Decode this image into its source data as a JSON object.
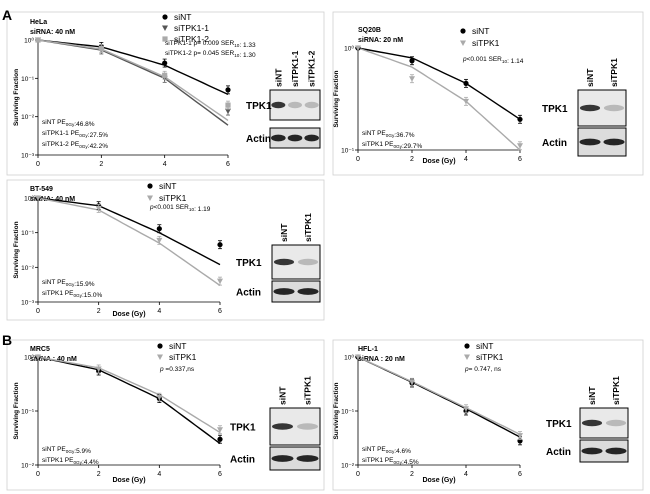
{
  "figure": {
    "panel_labels": [
      "A",
      "B"
    ],
    "blot_band_labels": [
      "TPK1",
      "Actin"
    ]
  },
  "chart_data": [
    {
      "type": "line",
      "panel": "A",
      "cell_line": "HeLa",
      "sirna_label": "siRNA: 40 nM",
      "xlabel": "",
      "ylabel": "Surviving Fraction",
      "x_ticks": [
        "0",
        "2",
        "4",
        "6"
      ],
      "y_ticks": [
        "10⁰",
        "10⁻¹",
        "10⁻²",
        "10⁻³"
      ],
      "xlim": [
        0,
        6
      ],
      "ylim_log10": [
        -3,
        0
      ],
      "x": [
        0,
        2,
        4,
        6
      ],
      "series": [
        {
          "name": "siNT",
          "marker": "circle",
          "color": "#000000",
          "values": [
            1.0,
            0.68,
            0.25,
            0.05
          ],
          "fit": [
            1.0,
            0.66,
            0.22,
            0.038
          ]
        },
        {
          "name": "siTPK1-1",
          "marker": "triangle",
          "color": "#555555",
          "values": [
            1.0,
            0.55,
            0.1,
            0.014
          ],
          "fit": [
            1.0,
            0.55,
            0.1,
            0.006
          ]
        },
        {
          "name": "siTPK1-2",
          "marker": "square",
          "color": "#aaaaaa",
          "values": [
            1.0,
            0.6,
            0.12,
            0.02
          ],
          "fit": [
            1.0,
            0.58,
            0.11,
            0.008
          ]
        }
      ],
      "stats": [
        "siTPK1-1 p= 0.009 SER10: 1.33",
        "siTPK1-2 p= 0.045 SER10: 1.30"
      ],
      "pe_notes": [
        "siNT PE0Gy:46.8%",
        "siTPK1-1 PE0Gy:27.5%",
        "siTPK1-2 PE0Gy:42.2%"
      ],
      "blot_lanes": [
        "siNT",
        "siTPK1-1",
        "siTPK1-2"
      ]
    },
    {
      "type": "line",
      "panel": "A",
      "cell_line": "SQ20B",
      "sirna_label": "siRNA: 20 nM",
      "xlabel": "Dose (Gy)",
      "ylabel": "Surviving Fraction",
      "x_ticks": [
        "0",
        "2",
        "4",
        "6"
      ],
      "y_ticks": [
        "10⁰",
        "10⁻¹"
      ],
      "xlim": [
        0,
        6
      ],
      "ylim_log10": [
        -1,
        0
      ],
      "x": [
        0,
        2,
        4,
        6
      ],
      "series": [
        {
          "name": "siNT",
          "marker": "circle",
          "color": "#000000",
          "values": [
            1.0,
            0.75,
            0.45,
            0.2
          ],
          "fit": [
            1.0,
            0.8,
            0.45,
            0.2
          ]
        },
        {
          "name": "siTPK1",
          "marker": "triangle",
          "color": "#aaaaaa",
          "values": [
            1.0,
            0.5,
            0.3,
            0.11
          ],
          "fit": [
            1.0,
            0.65,
            0.3,
            0.1
          ]
        }
      ],
      "stats": [
        "p<0.001 SER10: 1.14"
      ],
      "pe_notes": [
        "siNT PE0Gy:36.7%",
        "siTPK1 PE0Gy:29.7%"
      ],
      "blot_lanes": [
        "siNT",
        "siTPK1"
      ]
    },
    {
      "type": "line",
      "panel": "A",
      "cell_line": "BT-549",
      "sirna_label": "siRNA: 40 nM",
      "xlabel": "Dose (Gy)",
      "ylabel": "Surviving Fraction",
      "x_ticks": [
        "0",
        "2",
        "4",
        "6"
      ],
      "y_ticks": [
        "10⁰",
        "10⁻¹",
        "10⁻²",
        "10⁻³"
      ],
      "xlim": [
        0,
        6
      ],
      "ylim_log10": [
        -3,
        0
      ],
      "x": [
        0,
        2,
        4,
        6
      ],
      "series": [
        {
          "name": "siNT",
          "marker": "circle",
          "color": "#000000",
          "values": [
            1.0,
            0.6,
            0.13,
            0.045
          ],
          "fit": [
            1.0,
            0.6,
            0.1,
            0.012
          ]
        },
        {
          "name": "siTPK1",
          "marker": "triangle",
          "color": "#aaaaaa",
          "values": [
            1.0,
            0.5,
            0.06,
            0.004
          ],
          "fit": [
            1.0,
            0.45,
            0.05,
            0.003
          ]
        }
      ],
      "stats": [
        "p<0.001 SER10: 1.19"
      ],
      "pe_notes": [
        "siNT PE0Gy:15.9%",
        "siTPK1 PE0Gy:15.0%"
      ],
      "blot_lanes": [
        "siNT",
        "siTPK1"
      ]
    },
    {
      "type": "line",
      "panel": "B",
      "cell_line": "MRC5",
      "sirna_label": "siRNA : 40 nM",
      "xlabel": "Dose (Gy)",
      "ylabel": "Surviving Fraction",
      "x_ticks": [
        "0",
        "2",
        "4",
        "6"
      ],
      "y_ticks": [
        "10⁰",
        "10⁻¹",
        "10⁻²"
      ],
      "xlim": [
        0,
        6
      ],
      "ylim_log10": [
        -2,
        0
      ],
      "x": [
        0,
        2,
        4,
        6
      ],
      "series": [
        {
          "name": "siNT",
          "marker": "circle",
          "color": "#000000",
          "values": [
            1.0,
            0.55,
            0.17,
            0.03
          ],
          "fit": [
            1.0,
            0.58,
            0.17,
            0.025
          ]
        },
        {
          "name": "siTPK1",
          "marker": "triangle",
          "color": "#aaaaaa",
          "values": [
            1.0,
            0.6,
            0.18,
            0.045
          ],
          "fit": [
            1.0,
            0.63,
            0.2,
            0.04
          ]
        }
      ],
      "stats": [
        "p =0.337,ns"
      ],
      "pe_notes": [
        "siNT PE0Gy:5.9%",
        "siTPK1 PE0Gy:4.4%"
      ],
      "blot_lanes": [
        "siNT",
        "siTPK1"
      ]
    },
    {
      "type": "line",
      "panel": "B",
      "cell_line": "HFL-1",
      "sirna_label": "siRNA : 20 nM",
      "xlabel": "Dose (Gy)",
      "ylabel": "Surviving Fraction",
      "x_ticks": [
        "0",
        "2",
        "4",
        "6"
      ],
      "y_ticks": [
        "10⁰",
        "10⁻¹",
        "10⁻²"
      ],
      "xlim": [
        0,
        6
      ],
      "ylim_log10": [
        -2,
        0
      ],
      "x": [
        0,
        2,
        4,
        6
      ],
      "series": [
        {
          "name": "siNT",
          "marker": "circle",
          "color": "#000000",
          "values": [
            1.0,
            0.33,
            0.1,
            0.028
          ],
          "fit": [
            1.0,
            0.34,
            0.11,
            0.033
          ]
        },
        {
          "name": "siTPK1",
          "marker": "triangle",
          "color": "#aaaaaa",
          "values": [
            1.0,
            0.34,
            0.11,
            0.035
          ],
          "fit": [
            1.0,
            0.35,
            0.115,
            0.037
          ]
        }
      ],
      "stats": [
        "p= 0.747, ns"
      ],
      "pe_notes": [
        "siNT PE0Gy:4.6%",
        "siTPK1 PE0Gy:4.5%"
      ],
      "blot_lanes": [
        "siNT",
        "siTPK1"
      ]
    }
  ]
}
